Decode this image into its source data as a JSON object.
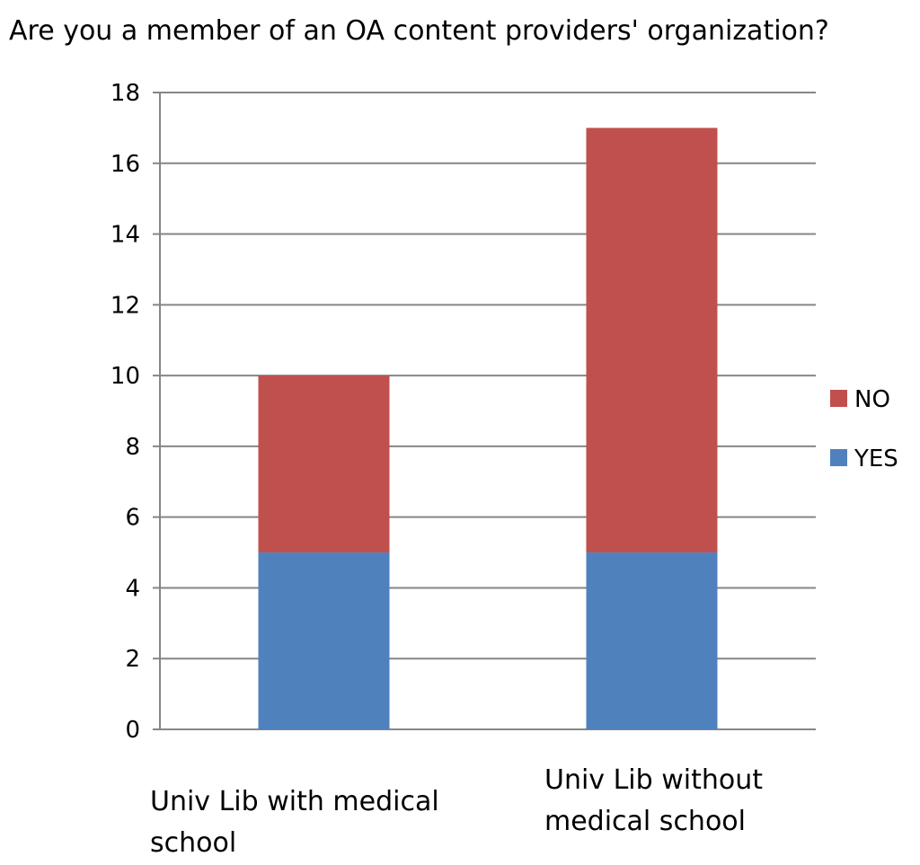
{
  "chart_data": {
    "type": "bar",
    "stacked": true,
    "title": "Are you a member of an OA content providers' organization?",
    "categories": [
      [
        "Univ Lib with medical",
        "school"
      ],
      [
        "Univ Lib without",
        "medical school"
      ]
    ],
    "series": [
      {
        "name": "YES",
        "values": [
          5,
          5
        ],
        "color": "#4F81BD"
      },
      {
        "name": "NO",
        "values": [
          5,
          12
        ],
        "color": "#C0504D"
      }
    ],
    "ylim": [
      0,
      18
    ],
    "yticks": [
      0,
      2,
      4,
      6,
      8,
      10,
      12,
      14,
      16,
      18
    ],
    "xlabel": "",
    "ylabel": "",
    "grid": true,
    "legend": "right"
  }
}
